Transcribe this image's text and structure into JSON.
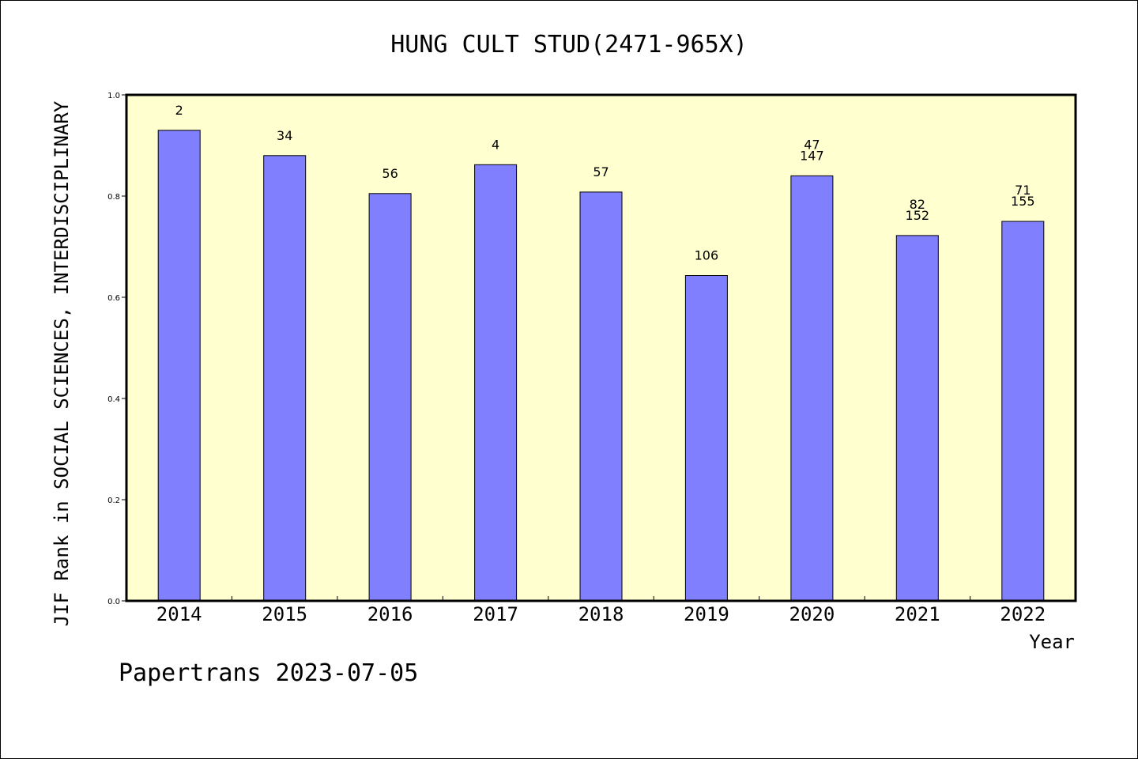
{
  "footer": {
    "text": "Papertrans 2023-07-05"
  },
  "colors": {
    "plot_bg": "#ffffd0",
    "bar": "#8080ff",
    "border": "#000000"
  },
  "chart_data": {
    "type": "bar",
    "title": "HUNG CULT STUD(2471-965X)",
    "xlabel": "Year",
    "ylabel": "JIF Rank in SOCIAL SCIENCES, INTERDISCIPLINARY",
    "ylim": [
      0,
      1.0
    ],
    "yticks": [
      "0.0",
      "0.2",
      "0.4",
      "0.6",
      "0.8",
      "1.0"
    ],
    "grid": false,
    "categories": [
      "2014",
      "2015",
      "2016",
      "2017",
      "2018",
      "2019",
      "2020",
      "2021",
      "2022"
    ],
    "values": [
      0.93,
      0.88,
      0.805,
      0.862,
      0.808,
      0.643,
      0.84,
      0.722,
      0.75
    ],
    "annotations": [
      [
        "2"
      ],
      [
        "34"
      ],
      [
        "56"
      ],
      [
        "4"
      ],
      [
        "57"
      ],
      [
        "106"
      ],
      [
        "47",
        "147"
      ],
      [
        "82",
        "152"
      ],
      [
        "71",
        "155"
      ]
    ]
  }
}
